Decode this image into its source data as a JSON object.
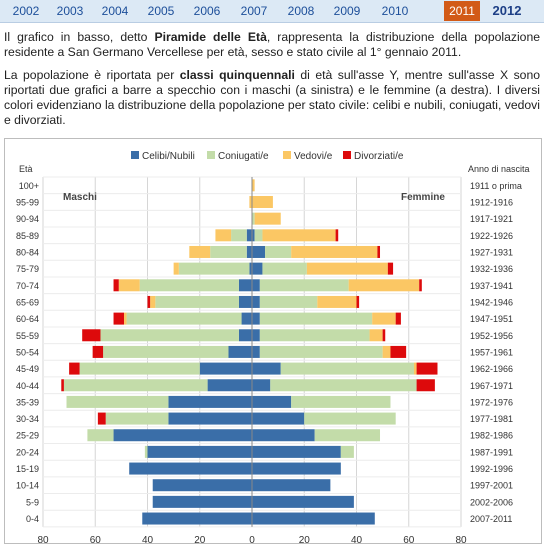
{
  "years_nav": {
    "items": [
      "2002",
      "2003",
      "2004",
      "2005",
      "2006",
      "2007",
      "2008",
      "2009",
      "2010",
      "2011",
      "2012"
    ],
    "highlighted": "2011",
    "selected": "2012",
    "highlight_color": "#d25a17"
  },
  "intro": {
    "p1_before": "Il grafico in basso, detto ",
    "p1_bold": "Piramide delle Età",
    "p1_after": ", rappresenta la distribuzione della popolazione residente a San Germano Vercellese per età, sesso e stato civile al 1° gennaio 2011.",
    "p2_before": "La popolazione è riportata per ",
    "p2_bold": "classi quinquennali",
    "p2_after": " di età sull'asse Y, mentre sull'asse X sono riportati due grafici a barre a specchio con i maschi (a sinistra) e le femmine (a destra). I diversi colori evidenziano la distribuzione della popolazione per stato civile: celibi e nubili, coniugati, vedovi e divorziati."
  },
  "chart_data": {
    "type": "bar",
    "orientation": "horizontal-mirrored",
    "legend": {
      "placement": "top",
      "entries": [
        "Celibi/Nubili",
        "Coniugati/e",
        "Vedovi/e",
        "Divorziati/e"
      ]
    },
    "colors": {
      "Celibi/Nubili": "#3a6ea8",
      "Coniugati/e": "#c3dca9",
      "Vedovi/e": "#fbc764",
      "Divorziati/e": "#dd0a0c"
    },
    "y_axis_label": "Età",
    "birth_axis_label": "Anno di nascita",
    "left_panel_label": "Maschi",
    "right_panel_label": "Femmine",
    "x_ticks": [
      "80",
      "60",
      "40",
      "20",
      "0",
      "20",
      "40",
      "60",
      "80"
    ],
    "xlim": [
      -80,
      80
    ],
    "grid": true,
    "categories": [
      "100+",
      "95-99",
      "90-94",
      "85-89",
      "80-84",
      "75-79",
      "70-74",
      "65-69",
      "60-64",
      "55-59",
      "50-54",
      "45-49",
      "40-44",
      "35-39",
      "30-34",
      "25-29",
      "20-24",
      "15-19",
      "10-14",
      "5-9",
      "0-4"
    ],
    "birth_years": [
      "1911 o prima",
      "1912-1916",
      "1917-1921",
      "1922-1926",
      "1927-1931",
      "1932-1936",
      "1937-1941",
      "1942-1946",
      "1947-1951",
      "1952-1956",
      "1957-1961",
      "1962-1966",
      "1967-1971",
      "1972-1976",
      "1977-1981",
      "1982-1986",
      "1987-1991",
      "1992-1996",
      "1997-2001",
      "2002-2006",
      "2007-2011"
    ],
    "series": [
      {
        "name": "Celibi/Nubili",
        "males": [
          0,
          0,
          0,
          2,
          2,
          1,
          5,
          5,
          4,
          5,
          9,
          20,
          17,
          32,
          32,
          53,
          40,
          47,
          38,
          38,
          42
        ],
        "females": [
          0,
          0,
          0,
          1,
          5,
          4,
          3,
          3,
          3,
          3,
          3,
          11,
          7,
          15,
          20,
          24,
          34,
          34,
          30,
          39,
          47
        ]
      },
      {
        "name": "Coniugati/e",
        "males": [
          0,
          0,
          0,
          6,
          14,
          27,
          38,
          32,
          44,
          53,
          48,
          46,
          55,
          39,
          24,
          10,
          1,
          0,
          0,
          0,
          0
        ],
        "females": [
          0,
          0,
          1,
          3,
          10,
          17,
          34,
          22,
          43,
          42,
          47,
          51,
          56,
          38,
          35,
          25,
          5,
          0,
          0,
          0,
          0
        ]
      },
      {
        "name": "Vedovi/e",
        "males": [
          0,
          1,
          0,
          6,
          8,
          2,
          8,
          2,
          1,
          0,
          0,
          0,
          0,
          0,
          0,
          0,
          0,
          0,
          0,
          0,
          0
        ],
        "females": [
          1,
          8,
          10,
          28,
          33,
          31,
          27,
          15,
          9,
          5,
          3,
          1,
          0,
          0,
          0,
          0,
          0,
          0,
          0,
          0,
          0
        ]
      },
      {
        "name": "Divorziati/e",
        "males": [
          0,
          0,
          0,
          0,
          0,
          0,
          2,
          1,
          4,
          7,
          4,
          4,
          1,
          0,
          3,
          0,
          0,
          0,
          0,
          0,
          0
        ],
        "females": [
          0,
          0,
          0,
          1,
          1,
          2,
          1,
          1,
          2,
          1,
          6,
          8,
          7,
          0,
          0,
          0,
          0,
          0,
          0,
          0,
          0
        ]
      }
    ]
  }
}
